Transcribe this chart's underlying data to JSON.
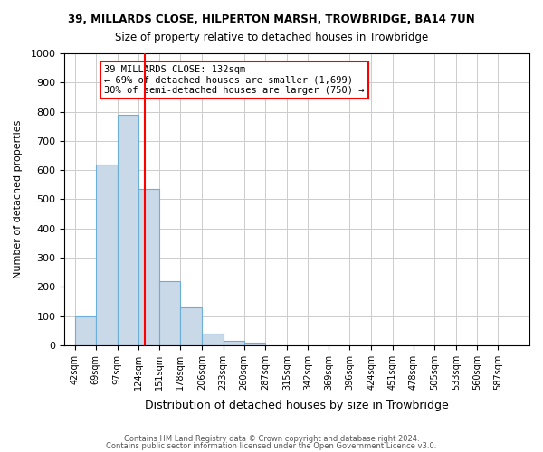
{
  "title1": "39, MILLARDS CLOSE, HILPERTON MARSH, TROWBRIDGE, BA14 7UN",
  "title2": "Size of property relative to detached houses in Trowbridge",
  "xlabel": "Distribution of detached houses by size in Trowbridge",
  "ylabel": "Number of detached properties",
  "bin_labels": [
    "42sqm",
    "69sqm",
    "97sqm",
    "124sqm",
    "151sqm",
    "178sqm",
    "206sqm",
    "233sqm",
    "260sqm",
    "287sqm",
    "315sqm",
    "342sqm",
    "369sqm",
    "396sqm",
    "424sqm",
    "451sqm",
    "478sqm",
    "505sqm",
    "533sqm",
    "560sqm",
    "587sqm"
  ],
  "bin_edges": [
    42,
    69,
    97,
    124,
    151,
    178,
    206,
    233,
    260,
    287,
    315,
    342,
    369,
    396,
    424,
    451,
    478,
    505,
    533,
    560,
    587,
    614
  ],
  "bar_heights": [
    100,
    620,
    790,
    535,
    220,
    130,
    40,
    15,
    10,
    0,
    0,
    0,
    0,
    0,
    0,
    0,
    0,
    0,
    0,
    0,
    0
  ],
  "bar_color": "#c9d9e8",
  "bar_edge_color": "#6baed6",
  "red_line_x": 132,
  "ylim": [
    0,
    1000
  ],
  "annotation_text": "39 MILLARDS CLOSE: 132sqm\n← 69% of detached houses are smaller (1,699)\n30% of semi-detached houses are larger (750) →",
  "footnote1": "Contains HM Land Registry data © Crown copyright and database right 2024.",
  "footnote2": "Contains public sector information licensed under the Open Government Licence v3.0.",
  "background_color": "#ffffff",
  "grid_color": "#cccccc"
}
